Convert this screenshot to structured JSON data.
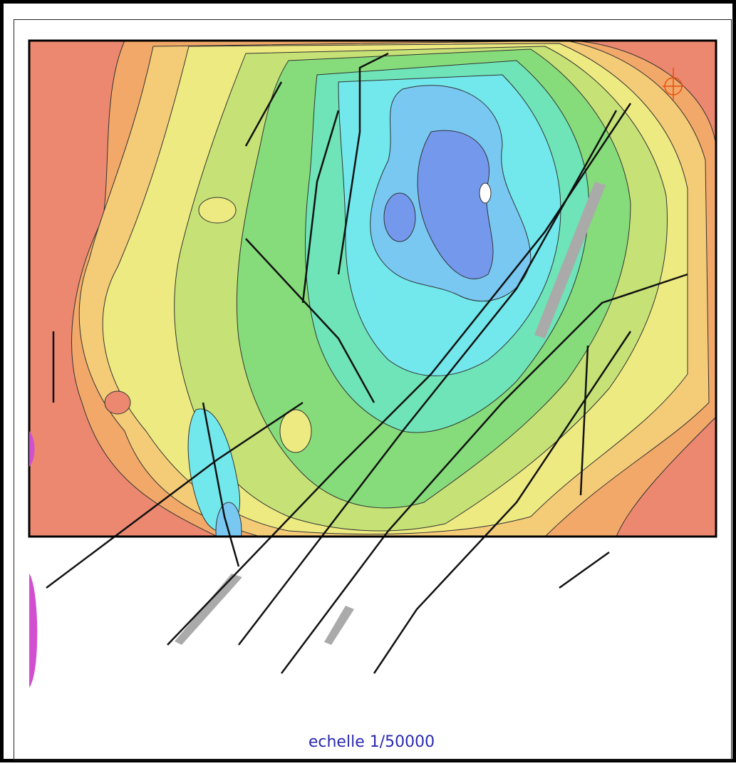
{
  "map": {
    "scale_label": "echelle 1/50000"
  }
}
